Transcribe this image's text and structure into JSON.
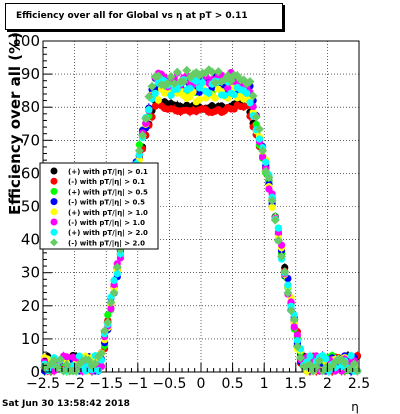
{
  "chart_data": {
    "type": "scatter",
    "title": "Efficiency over all for Global vs   η at pT > 0.11",
    "xlabel": "η",
    "ylabel": "Efficiency over all (%)",
    "xlim": [
      -2.5,
      2.5
    ],
    "ylim": [
      0,
      100
    ],
    "x_ticks": [
      "−2.5",
      "−2",
      "−1.5",
      "−1",
      "−0.5",
      "0",
      "0.5",
      "1",
      "1.5",
      "2",
      "2.5"
    ],
    "y_ticks": [
      "0",
      "10",
      "20",
      "30",
      "40",
      "50",
      "60",
      "70",
      "80",
      "90",
      "100"
    ],
    "grid": true,
    "legend_position": "left-middle",
    "series": [
      {
        "name": "(+) with pT/|η| > 0.1",
        "color": "#000000",
        "plateau": 80,
        "seed": 1
      },
      {
        "name": "(-) with pT/|η| > 0.1",
        "color": "#ff0000",
        "plateau": 79,
        "seed": 2
      },
      {
        "name": "(+) with pT/|η| > 0.5",
        "color": "#00ff00",
        "plateau": 86,
        "seed": 3
      },
      {
        "name": "(-) with pT/|η| > 0.5",
        "color": "#0000ff",
        "plateau": 87,
        "seed": 4
      },
      {
        "name": "(+) with pT/|η| > 1.0",
        "color": "#ffff00",
        "plateau": 84,
        "seed": 5
      },
      {
        "name": "(-) with pT/|η| > 1.0",
        "color": "#ff00ff",
        "plateau": 88,
        "seed": 6
      },
      {
        "name": "(+) with pT/|η| > 2.0",
        "color": "#00ffff",
        "plateau": 86,
        "seed": 7
      },
      {
        "name": "(-) with pT/|η| > 2.0",
        "color": "#66cc66",
        "plateau": 89,
        "seed": 8
      }
    ]
  },
  "footer_text": "Sat Jun 30 13:58:42 2018"
}
